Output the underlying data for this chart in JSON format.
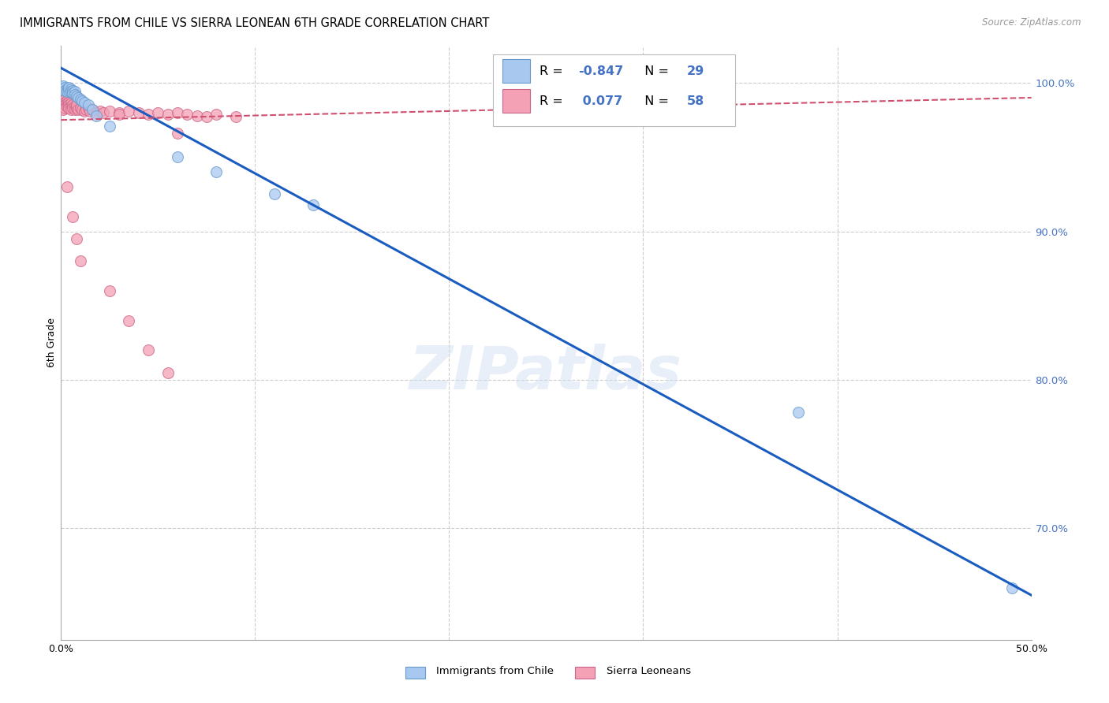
{
  "title": "IMMIGRANTS FROM CHILE VS SIERRA LEONEAN 6TH GRADE CORRELATION CHART",
  "source": "Source: ZipAtlas.com",
  "ylabel": "6th Grade",
  "xlim": [
    0.0,
    0.5
  ],
  "ylim": [
    0.625,
    1.025
  ],
  "background_color": "#ffffff",
  "grid_color": "#cccccc",
  "watermark": "ZIPatlas",
  "chile_color": "#a8c8f0",
  "chile_edge_color": "#6699cc",
  "sierra_color": "#f4a0b5",
  "sierra_edge_color": "#cc6688",
  "chile_R": -0.847,
  "chile_N": 29,
  "sierra_R": 0.077,
  "sierra_N": 58,
  "legend_label_chile": "Immigrants from Chile",
  "legend_label_sierra": "Sierra Leoneans",
  "right_axis_color": "#4472c4",
  "chile_line_color": "#1a5cbf",
  "sierra_line_color": "#d05070",
  "chile_points_x": [
    0.001,
    0.001,
    0.002,
    0.002,
    0.003,
    0.003,
    0.004,
    0.004,
    0.005,
    0.005,
    0.006,
    0.006,
    0.007,
    0.007,
    0.008,
    0.009,
    0.01,
    0.011,
    0.012,
    0.014,
    0.016,
    0.018,
    0.025,
    0.06,
    0.08,
    0.11,
    0.13,
    0.38,
    0.49
  ],
  "chile_points_y": [
    0.998,
    0.996,
    0.997,
    0.995,
    0.996,
    0.994,
    0.995,
    0.997,
    0.996,
    0.994,
    0.995,
    0.993,
    0.994,
    0.992,
    0.991,
    0.99,
    0.989,
    0.988,
    0.987,
    0.985,
    0.982,
    0.978,
    0.971,
    0.95,
    0.94,
    0.925,
    0.918,
    0.778,
    0.66
  ],
  "sierra_points_x": [
    0.001,
    0.001,
    0.001,
    0.001,
    0.001,
    0.002,
    0.002,
    0.002,
    0.002,
    0.003,
    0.003,
    0.003,
    0.004,
    0.004,
    0.004,
    0.005,
    0.005,
    0.005,
    0.006,
    0.006,
    0.007,
    0.007,
    0.008,
    0.008,
    0.009,
    0.01,
    0.011,
    0.012,
    0.013,
    0.014,
    0.015,
    0.016,
    0.018,
    0.02,
    0.022,
    0.025,
    0.03,
    0.03,
    0.035,
    0.04,
    0.045,
    0.05,
    0.055,
    0.06,
    0.065,
    0.06,
    0.07,
    0.075,
    0.08,
    0.09,
    0.003,
    0.006,
    0.008,
    0.01,
    0.025,
    0.035,
    0.045,
    0.055
  ],
  "sierra_points_y": [
    0.99,
    0.988,
    0.986,
    0.984,
    0.982,
    0.989,
    0.987,
    0.985,
    0.983,
    0.988,
    0.986,
    0.984,
    0.987,
    0.985,
    0.983,
    0.986,
    0.984,
    0.982,
    0.985,
    0.983,
    0.984,
    0.982,
    0.983,
    0.985,
    0.982,
    0.983,
    0.982,
    0.981,
    0.982,
    0.983,
    0.981,
    0.982,
    0.98,
    0.981,
    0.98,
    0.981,
    0.98,
    0.979,
    0.981,
    0.98,
    0.979,
    0.98,
    0.979,
    0.98,
    0.979,
    0.966,
    0.978,
    0.977,
    0.979,
    0.977,
    0.93,
    0.91,
    0.895,
    0.88,
    0.86,
    0.84,
    0.82,
    0.805
  ],
  "chile_line_x": [
    0.0,
    0.5
  ],
  "chile_line_y": [
    1.01,
    0.655
  ],
  "sierra_line_x": [
    0.0,
    0.5
  ],
  "sierra_line_y": [
    0.975,
    0.99
  ]
}
